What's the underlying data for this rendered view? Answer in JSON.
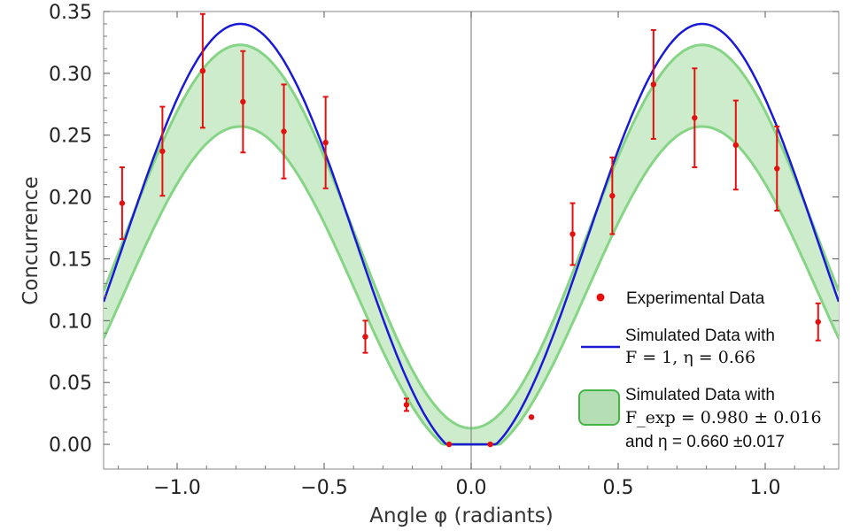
{
  "chart_data": {
    "type": "scatter",
    "xlabel": "Angle φ (radiants)",
    "ylabel": "Concurrence",
    "xlim": [
      -1.25,
      1.25
    ],
    "ylim": [
      -0.02,
      0.35
    ],
    "xticks": [
      -1.0,
      -0.5,
      0.0,
      0.5,
      1.0
    ],
    "xtick_labels": [
      "−1.0",
      "−0.5",
      "0.0",
      "0.5",
      "1.0"
    ],
    "yticks": [
      0.0,
      0.05,
      0.1,
      0.15,
      0.2,
      0.25,
      0.3,
      0.35
    ],
    "ytick_labels": [
      "0.00",
      "0.05",
      "0.10",
      "0.15",
      "0.20",
      "0.25",
      "0.30",
      "0.35"
    ],
    "experimental": {
      "name": "Experimental Data",
      "color": "#e41010",
      "x": [
        -1.187,
        -1.05,
        -0.913,
        -0.776,
        -0.637,
        -0.495,
        -0.36,
        -0.22,
        -0.075,
        0.065,
        0.205,
        0.345,
        0.48,
        0.62,
        0.76,
        0.9,
        1.04,
        1.18
      ],
      "y": [
        0.195,
        0.237,
        0.302,
        0.277,
        0.253,
        0.244,
        0.087,
        0.032,
        0.0,
        0.0,
        0.022,
        0.17,
        0.201,
        0.291,
        0.264,
        0.242,
        0.223,
        0.099
      ],
      "err": [
        0.029,
        0.036,
        0.046,
        0.041,
        0.038,
        0.037,
        0.013,
        0.005,
        0.0,
        0.0,
        0.0,
        0.025,
        0.031,
        0.044,
        0.04,
        0.036,
        0.034,
        0.015
      ]
    },
    "simulated_line": {
      "name_line1": "Simulated Data with",
      "name_line2": "F = 1, η = 0.66",
      "color": "#1a1ad6",
      "model": "max(0, 0.34*sin(2|x|)^2 - 0.01), floor 0 near x=0",
      "peak": 0.34
    },
    "simulated_band": {
      "name_line1": "Simulated Data with",
      "name_line2": "F_exp = 0.980 ± 0.016",
      "name_line3": "and η = 0.660 ±0.017",
      "fill": "#cdeccb",
      "stroke": "#86d486",
      "upper_peak": 0.323,
      "lower_peak": 0.257,
      "upper_at_zero": 0.013
    }
  },
  "legend": {
    "exp_label": "Experimental Data",
    "line_label_1": "Simulated Data with",
    "line_label_2": "F = 1, η = 0.66",
    "band_label_1": "Simulated Data with",
    "band_label_2": "F_exp = 0.980 ± 0.016",
    "band_label_3": "and η = 0.660 ±0.017"
  }
}
